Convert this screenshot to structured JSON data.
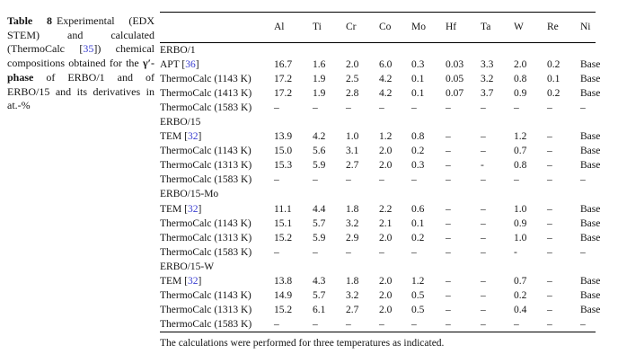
{
  "caption": {
    "label": "Table 8",
    "part1": "Experimental (EDX STEM) and calculated (ThermoCalc [",
    "ref": "35",
    "part2": "]) chemical compositions obtained for the ",
    "phase": "γ′-phase",
    "part3": " of ERBO/1 and of ERBO/15 and its derivatives in at.-%"
  },
  "table": {
    "columns": [
      "Al",
      "Ti",
      "Cr",
      "Co",
      "Mo",
      "Hf",
      "Ta",
      "W",
      "Re",
      "Ni"
    ],
    "rows": [
      {
        "type": "section",
        "label": "ERBO/1"
      },
      {
        "type": "data",
        "label": "APT",
        "ref": "36",
        "values": [
          "16.7",
          "1.6",
          "2.0",
          "6.0",
          "0.3",
          "0.03",
          "3.3",
          "2.0",
          "0.2",
          "Base"
        ]
      },
      {
        "type": "data",
        "label": "ThermoCalc (1143 K)",
        "values": [
          "17.2",
          "1.9",
          "2.5",
          "4.2",
          "0.1",
          "0.05",
          "3.2",
          "0.8",
          "0.1",
          "Base"
        ]
      },
      {
        "type": "data",
        "label": "ThermoCalc (1413 K)",
        "values": [
          "17.2",
          "1.9",
          "2.8",
          "4.2",
          "0.1",
          "0.07",
          "3.7",
          "0.9",
          "0.2",
          "Base"
        ]
      },
      {
        "type": "data",
        "label": "ThermoCalc (1583 K)",
        "values": [
          "–",
          "–",
          "–",
          "–",
          "–",
          "–",
          "–",
          "–",
          "–",
          "–"
        ]
      },
      {
        "type": "section",
        "label": "ERBO/15"
      },
      {
        "type": "data",
        "label": "TEM",
        "ref": "32",
        "values": [
          "13.9",
          "4.2",
          "1.0",
          "1.2",
          "0.8",
          "–",
          "–",
          "1.2",
          "–",
          "Base"
        ]
      },
      {
        "type": "data",
        "label": "ThermoCalc (1143 K)",
        "values": [
          "15.0",
          "5.6",
          "3.1",
          "2.0",
          "0.2",
          "–",
          "–",
          "0.7",
          "–",
          "Base"
        ]
      },
      {
        "type": "data",
        "label": "ThermoCalc (1313 K)",
        "values": [
          "15.3",
          "5.9",
          "2.7",
          "2.0",
          "0.3",
          "–",
          "-",
          "0.8",
          "–",
          "Base"
        ]
      },
      {
        "type": "data",
        "label": "ThermoCalc (1583 K)",
        "values": [
          "–",
          "–",
          "–",
          "–",
          "–",
          "–",
          "–",
          "–",
          "–",
          "–"
        ]
      },
      {
        "type": "section",
        "label": "ERBO/15-Mo"
      },
      {
        "type": "data",
        "label": "TEM",
        "ref": "32",
        "values": [
          "11.1",
          "4.4",
          "1.8",
          "2.2",
          "0.6",
          "–",
          "–",
          "1.0",
          "–",
          "Base"
        ]
      },
      {
        "type": "data",
        "label": "ThermoCalc (1143 K)",
        "values": [
          "15.1",
          "5.7",
          "3.2",
          "2.1",
          "0.1",
          "–",
          "–",
          "0.9",
          "–",
          "Base"
        ]
      },
      {
        "type": "data",
        "label": "ThermoCalc (1313 K)",
        "values": [
          "15.2",
          "5.9",
          "2.9",
          "2.0",
          "0.2",
          "–",
          "–",
          "1.0",
          "–",
          "Base"
        ]
      },
      {
        "type": "data",
        "label": "ThermoCalc (1583 K)",
        "values": [
          "–",
          "–",
          "–",
          "–",
          "–",
          "–",
          "–",
          "-",
          "–",
          "–"
        ]
      },
      {
        "type": "section",
        "label": "ERBO/15-W"
      },
      {
        "type": "data",
        "label": "TEM",
        "ref": "32",
        "values": [
          "13.8",
          "4.3",
          "1.8",
          "2.0",
          "1.2",
          "–",
          "–",
          "0.7",
          "–",
          "Base"
        ]
      },
      {
        "type": "data",
        "label": "ThermoCalc (1143 K)",
        "values": [
          "14.9",
          "5.7",
          "3.2",
          "2.0",
          "0.5",
          "–",
          "–",
          "0.2",
          "–",
          "Base"
        ]
      },
      {
        "type": "data",
        "label": "ThermoCalc (1313 K)",
        "values": [
          "15.2",
          "6.1",
          "2.7",
          "2.0",
          "0.5",
          "–",
          "–",
          "0.4",
          "–",
          "Base"
        ]
      },
      {
        "type": "data",
        "label": "ThermoCalc (1583 K)",
        "values": [
          "–",
          "–",
          "–",
          "–",
          "–",
          "–",
          "–",
          "–",
          "–",
          "–"
        ]
      }
    ]
  },
  "footnote": "The calculations were performed for three temperatures as indicated.",
  "colors": {
    "link_blue": "#3b3fd0",
    "text": "#141414",
    "rule": "#000000"
  }
}
